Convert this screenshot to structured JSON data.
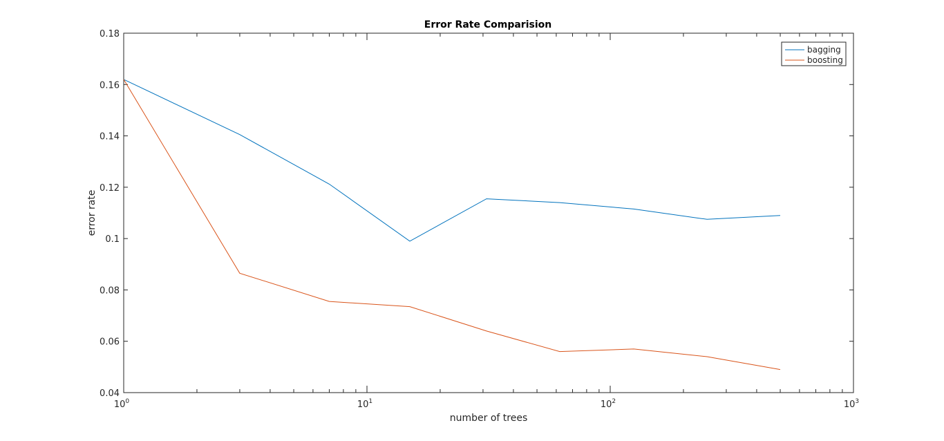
{
  "chart_data": {
    "type": "line",
    "title": "Error Rate Comparision",
    "xlabel": "number of trees",
    "ylabel": "error rate",
    "xscale": "log",
    "xlim": [
      1,
      1000
    ],
    "ylim": [
      0.04,
      0.18
    ],
    "x": [
      1,
      3,
      7,
      15,
      31,
      62,
      125,
      250,
      500
    ],
    "series": [
      {
        "name": "bagging",
        "color": "#0072BD",
        "values": [
          0.162,
          0.1405,
          0.1212,
          0.099,
          0.1155,
          0.114,
          0.1115,
          0.1075,
          0.109
        ]
      },
      {
        "name": "boosting",
        "color": "#D95319",
        "values": [
          0.162,
          0.0865,
          0.0755,
          0.0735,
          0.064,
          0.056,
          0.057,
          0.054,
          0.049
        ]
      }
    ],
    "yticks": [
      "0.04",
      "0.06",
      "0.08",
      "0.1",
      "0.12",
      "0.14",
      "0.16",
      "0.18"
    ],
    "yticks_values": [
      0.04,
      0.06,
      0.08,
      0.1,
      0.12,
      0.14,
      0.16,
      0.18
    ],
    "xticks": [
      {
        "value": 1,
        "base": "10",
        "exp": "0"
      },
      {
        "value": 10,
        "base": "10",
        "exp": "1"
      },
      {
        "value": 100,
        "base": "10",
        "exp": "2"
      },
      {
        "value": 1000,
        "base": "10",
        "exp": "3"
      }
    ],
    "grid": false,
    "legend_position": "top-right"
  }
}
